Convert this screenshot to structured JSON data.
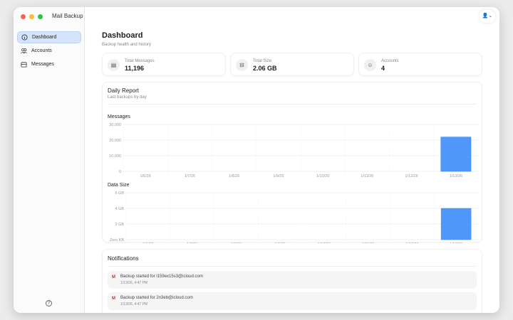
{
  "app": {
    "title": "Mail Backup"
  },
  "sidebar": {
    "items": [
      {
        "label": "Dashboard",
        "icon": "info-icon",
        "active": true
      },
      {
        "label": "Accounts",
        "icon": "people-icon"
      },
      {
        "label": "Messages",
        "icon": "tray-icon"
      }
    ],
    "help_icon": "question-icon"
  },
  "header": {
    "title": "Dashboard",
    "subtitle": "Backup health and history"
  },
  "stats": [
    {
      "label": "Total Messages",
      "value": "11,196",
      "icon": "tray-icon"
    },
    {
      "label": "Total Size",
      "value": "2.06 GB",
      "icon": "archive-icon"
    },
    {
      "label": "Accounts",
      "value": "4",
      "icon": "person-icon"
    }
  ],
  "report": {
    "title": "Daily Report",
    "subtitle": "Last backups by day"
  },
  "chart_data": [
    {
      "type": "bar",
      "title": "Messages",
      "categories": [
        "1/6/26",
        "1/7/26",
        "1/8/26",
        "1/9/26",
        "1/10/26",
        "1/11/26",
        "1/12/26",
        "1/13/26"
      ],
      "values": [
        0,
        0,
        0,
        0,
        0,
        0,
        0,
        22000
      ],
      "ylim": [
        0,
        30000
      ],
      "yticks": [
        "0",
        "10,000",
        "20,000",
        "30,000"
      ],
      "color": "#4f97fb",
      "grid": true
    },
    {
      "type": "bar",
      "title": "Data Size",
      "categories": [
        "1/6/26",
        "1/7/26",
        "1/8/26",
        "1/9/26",
        "1/10/26",
        "1/11/26",
        "1/12/26",
        "1/13/26"
      ],
      "values": [
        0,
        0,
        0,
        0,
        0,
        0,
        0,
        4.0
      ],
      "ylim": [
        0,
        6
      ],
      "yticks": [
        "Zero KB",
        "2 GB",
        "4 GB",
        "6 GB"
      ],
      "unit": "GB",
      "color": "#4f97fb",
      "grid": true
    }
  ],
  "notifications": {
    "title": "Notifications",
    "items": [
      {
        "text": "Backup started for l159ex15s3@icloud.com",
        "time": "1/13/26, 4:47 PM"
      },
      {
        "text": "Backup started for 2n3eb@icloud.com",
        "time": "1/13/26, 4:47 PM"
      }
    ]
  }
}
